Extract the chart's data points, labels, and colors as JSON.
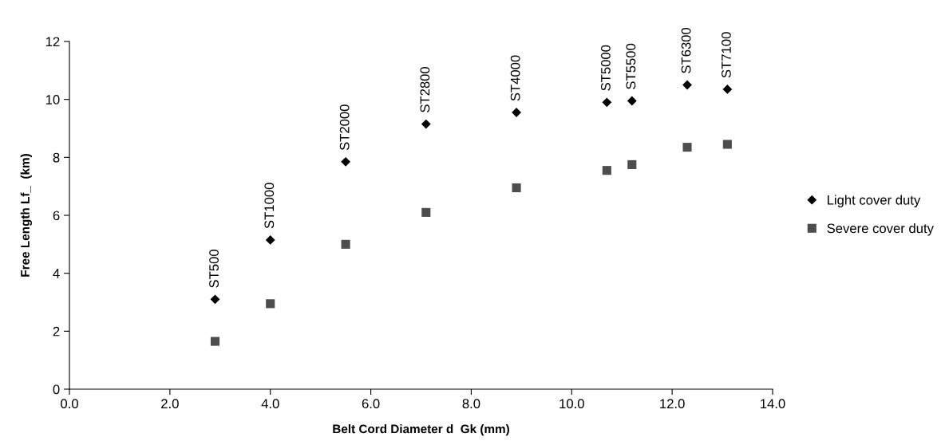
{
  "chart_data": {
    "type": "scatter",
    "xlabel": "Belt Cord Diameter d  Gk (mm)",
    "ylabel": "Free Length Lf_  (km)",
    "x": [
      2.9,
      4.0,
      5.5,
      7.1,
      8.9,
      10.7,
      11.2,
      12.3,
      13.1
    ],
    "series": [
      {
        "name": "Light cover duty",
        "color": "#000000",
        "marker": "diamond",
        "values": [
          3.1,
          5.15,
          7.85,
          9.15,
          9.55,
          9.9,
          9.95,
          10.5,
          10.35
        ]
      },
      {
        "name": "Severe cover duty",
        "color": "#4d4d4d",
        "marker": "square",
        "values": [
          1.65,
          2.95,
          5.0,
          6.1,
          6.95,
          7.55,
          7.75,
          8.35,
          8.45
        ]
      }
    ],
    "annotations": [
      {
        "text": "ST500",
        "x": 2.9,
        "y": 3.1
      },
      {
        "text": "ST1000",
        "x": 4.0,
        "y": 5.15
      },
      {
        "text": "ST2000",
        "x": 5.5,
        "y": 7.85
      },
      {
        "text": "ST2800",
        "x": 7.1,
        "y": 9.15
      },
      {
        "text": "ST4000",
        "x": 8.9,
        "y": 9.55
      },
      {
        "text": "ST5000",
        "x": 10.7,
        "y": 9.9
      },
      {
        "text": "ST5500",
        "x": 11.2,
        "y": 9.95
      },
      {
        "text": "ST6300",
        "x": 12.3,
        "y": 10.5
      },
      {
        "text": "ST7100",
        "x": 13.1,
        "y": 10.35
      }
    ],
    "xlim": [
      0,
      14
    ],
    "xticks": [
      {
        "value": 0,
        "label": "0.0"
      },
      {
        "value": 2,
        "label": "2.0"
      },
      {
        "value": 4,
        "label": "4.0"
      },
      {
        "value": 6,
        "label": "6.0"
      },
      {
        "value": 8,
        "label": "8.0"
      },
      {
        "value": 10,
        "label": "10.0"
      },
      {
        "value": 12,
        "label": "12.0"
      },
      {
        "value": 14,
        "label": "14.0"
      }
    ],
    "ylim": [
      0,
      12
    ],
    "yticks": [
      0,
      2,
      4,
      6,
      8,
      10,
      12
    ],
    "grid": false,
    "legend": "right"
  }
}
